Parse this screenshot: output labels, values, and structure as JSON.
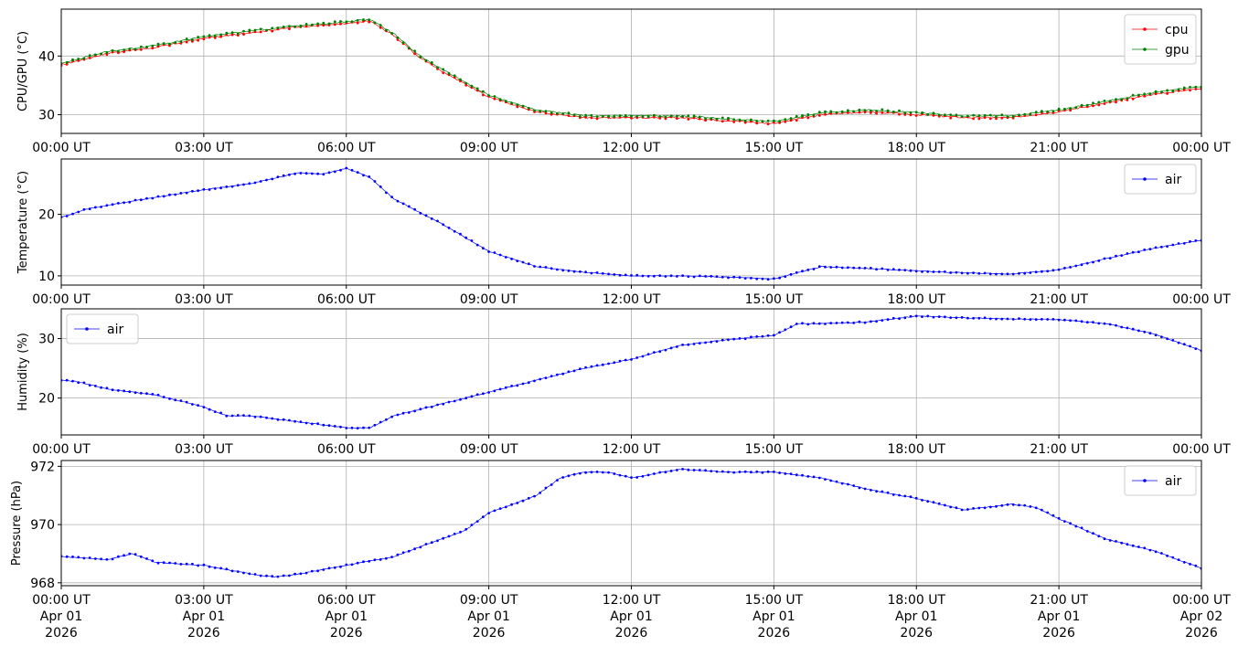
{
  "chart_data": [
    {
      "type": "line",
      "ylabel": "CPU/GPU (°C)",
      "ylim": [
        26.8,
        48.0
      ],
      "yticks": [
        30,
        40
      ],
      "grid": true,
      "legend_position": "top-right",
      "xticks": [
        "00:00 UT",
        "03:00 UT",
        "06:00 UT",
        "09:00 UT",
        "12:00 UT",
        "15:00 UT",
        "18:00 UT",
        "21:00 UT",
        "00:00 UT"
      ],
      "x_hours": [
        0,
        0.5,
        1,
        2,
        3,
        4,
        5,
        6,
        6.5,
        7,
        7.5,
        8,
        9,
        10,
        11,
        12,
        13,
        14,
        15,
        16,
        17,
        18,
        19,
        20,
        21,
        22,
        23,
        24
      ],
      "series": [
        {
          "name": "cpu",
          "color": "#ff0000",
          "values": [
            38.5,
            39.5,
            40.5,
            41.5,
            43.0,
            44.0,
            45.0,
            45.5,
            46.0,
            43.5,
            40.0,
            37.5,
            33.0,
            30.5,
            29.5,
            29.5,
            29.5,
            29.0,
            28.5,
            30.0,
            30.5,
            30.0,
            29.5,
            29.5,
            30.5,
            32.0,
            33.5,
            34.5
          ]
        },
        {
          "name": "gpu",
          "color": "#008000",
          "values": [
            38.7,
            39.8,
            40.8,
            41.8,
            43.3,
            44.3,
            45.2,
            45.8,
            46.3,
            43.8,
            40.3,
            37.8,
            33.3,
            30.8,
            29.8,
            29.8,
            29.8,
            29.3,
            28.8,
            30.3,
            30.8,
            30.3,
            29.8,
            29.8,
            30.8,
            32.3,
            33.8,
            34.8
          ]
        }
      ]
    },
    {
      "type": "line",
      "ylabel": "Temperature (°C)",
      "ylim": [
        8.5,
        29.0
      ],
      "yticks": [
        10,
        20
      ],
      "grid": true,
      "legend_position": "top-right",
      "xticks": [
        "00:00 UT",
        "03:00 UT",
        "06:00 UT",
        "09:00 UT",
        "12:00 UT",
        "15:00 UT",
        "18:00 UT",
        "21:00 UT",
        "00:00 UT"
      ],
      "x_hours": [
        0,
        0.5,
        1,
        2,
        3,
        4,
        5,
        5.5,
        6,
        6.5,
        7,
        8,
        9,
        10,
        11,
        12,
        13,
        14,
        15,
        15.5,
        16,
        17,
        18,
        19,
        20,
        21,
        22,
        23,
        24
      ],
      "series": [
        {
          "name": "air",
          "color": "#0000ff",
          "values": [
            19.5,
            20.8,
            21.5,
            22.8,
            24.0,
            25.0,
            26.8,
            26.5,
            27.5,
            26.0,
            22.5,
            18.5,
            14.0,
            11.5,
            10.6,
            10.0,
            10.0,
            9.8,
            9.5,
            10.5,
            11.5,
            11.2,
            10.8,
            10.5,
            10.3,
            11.0,
            12.8,
            14.5,
            15.8
          ]
        }
      ]
    },
    {
      "type": "line",
      "ylabel": "Humidity (%)",
      "ylim": [
        13.8,
        35.0
      ],
      "yticks": [
        20,
        30
      ],
      "grid": true,
      "legend_position": "top-left",
      "xticks": [
        "00:00 UT",
        "03:00 UT",
        "06:00 UT",
        "09:00 UT",
        "12:00 UT",
        "15:00 UT",
        "18:00 UT",
        "21:00 UT",
        "00:00 UT"
      ],
      "x_hours": [
        0,
        0.3,
        1,
        2,
        3,
        3.5,
        4,
        5,
        6,
        6.5,
        7,
        8,
        9,
        10,
        11,
        12,
        13,
        14,
        15,
        15.5,
        16,
        17,
        18,
        19,
        20,
        21,
        22,
        23,
        24
      ],
      "series": [
        {
          "name": "air",
          "color": "#0000ff",
          "values": [
            23.0,
            22.8,
            21.5,
            20.5,
            18.5,
            17.0,
            17.0,
            16.0,
            15.0,
            15.0,
            17.0,
            19.0,
            21.0,
            23.0,
            25.0,
            26.5,
            28.8,
            29.8,
            30.5,
            32.5,
            32.5,
            32.8,
            33.8,
            33.5,
            33.3,
            33.2,
            32.5,
            30.8,
            28.0
          ]
        }
      ]
    },
    {
      "type": "line",
      "ylabel": "Pressure (hPa)",
      "ylim": [
        967.9,
        972.2
      ],
      "yticks": [
        968,
        970,
        972
      ],
      "grid": true,
      "legend_position": "top-right",
      "xticks": [
        "00:00 UT",
        "03:00 UT",
        "06:00 UT",
        "09:00 UT",
        "12:00 UT",
        "15:00 UT",
        "18:00 UT",
        "21:00 UT",
        "00:00 UT"
      ],
      "x_date_labels": [
        "Apr 01",
        "Apr 01",
        "Apr 01",
        "Apr 01",
        "Apr 01",
        "Apr 01",
        "Apr 01",
        "Apr 01",
        "Apr 02"
      ],
      "x_year_labels": [
        "2026",
        "2026",
        "2026",
        "2026",
        "2026",
        "2026",
        "2026",
        "2026",
        "2026"
      ],
      "x_hours": [
        0,
        1,
        1.5,
        2,
        3,
        4,
        4.5,
        5,
        6,
        7,
        8,
        8.5,
        9,
        10,
        10.5,
        11,
        11.5,
        12,
        13,
        14,
        15,
        16,
        17,
        18,
        19,
        20,
        20.5,
        21,
        22,
        23,
        24
      ],
      "series": [
        {
          "name": "air",
          "color": "#0000ff",
          "values": [
            968.9,
            968.8,
            969.0,
            968.7,
            968.6,
            968.3,
            968.2,
            968.3,
            968.6,
            968.9,
            969.5,
            969.8,
            970.4,
            971.0,
            971.6,
            971.8,
            971.8,
            971.6,
            971.9,
            971.8,
            971.8,
            971.6,
            971.2,
            970.9,
            970.5,
            970.7,
            970.6,
            970.2,
            969.5,
            969.1,
            968.5
          ]
        }
      ]
    }
  ]
}
